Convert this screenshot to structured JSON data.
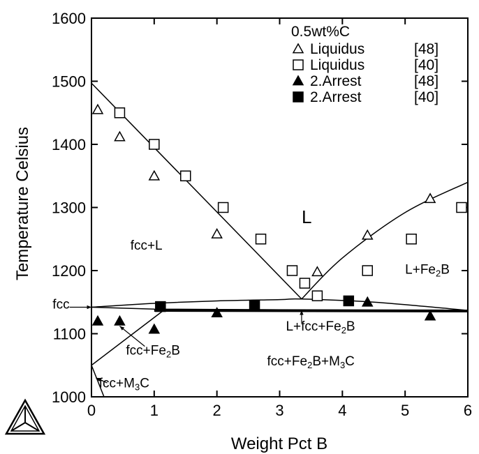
{
  "chart_data": {
    "type": "scatter",
    "title": "",
    "xlabel": "Weight Pct B",
    "ylabel": "Temperature Celsius",
    "xlim": [
      0,
      6
    ],
    "ylim": [
      1000,
      1600
    ],
    "x_ticks": [
      "0",
      "1",
      "2",
      "3",
      "4",
      "5",
      "6"
    ],
    "y_ticks": [
      "1000",
      "1100",
      "1200",
      "1300",
      "1400",
      "1500",
      "1600"
    ],
    "legend": {
      "title": "0.5wt%C",
      "position": "top-right",
      "entries": [
        {
          "label": "Liquidus",
          "ref": "[48]",
          "marker": "triangle-open"
        },
        {
          "label": "Liquidus",
          "ref": "[40]",
          "marker": "square-open"
        },
        {
          "label": "2.Arrest",
          "ref": "[48]",
          "marker": "triangle-filled"
        },
        {
          "label": "2.Arrest",
          "ref": "[40]",
          "marker": "square-filled"
        }
      ]
    },
    "series": [
      {
        "marker": "triangle-open",
        "points": [
          [
            0.1,
            1455
          ],
          [
            0.45,
            1412
          ],
          [
            1.0,
            1350
          ],
          [
            2.0,
            1258
          ],
          [
            3.6,
            1198
          ],
          [
            4.4,
            1256
          ],
          [
            5.4,
            1314
          ]
        ]
      },
      {
        "marker": "square-open",
        "points": [
          [
            0.45,
            1450
          ],
          [
            1.0,
            1400
          ],
          [
            1.5,
            1350
          ],
          [
            2.1,
            1300
          ],
          [
            2.7,
            1250
          ],
          [
            3.2,
            1200
          ],
          [
            3.4,
            1180
          ],
          [
            3.6,
            1160
          ],
          [
            4.4,
            1200
          ],
          [
            5.1,
            1250
          ],
          [
            5.9,
            1300
          ]
        ]
      },
      {
        "marker": "triangle-filled",
        "points": [
          [
            0.1,
            1120
          ],
          [
            0.45,
            1120
          ],
          [
            1.0,
            1107
          ],
          [
            2.0,
            1133
          ],
          [
            4.4,
            1150
          ],
          [
            5.4,
            1128
          ]
        ]
      },
      {
        "marker": "square-filled",
        "points": [
          [
            1.1,
            1143
          ],
          [
            2.6,
            1145
          ],
          [
            4.1,
            1152
          ]
        ]
      }
    ],
    "lines": [
      {
        "name": "liquidus-left",
        "points": [
          [
            0,
            1497
          ],
          [
            3.35,
            1155
          ]
        ]
      },
      {
        "name": "liquidus-right",
        "points": [
          [
            3.35,
            1155
          ],
          [
            4.0,
            1220
          ],
          [
            5.0,
            1292
          ],
          [
            6.0,
            1340
          ]
        ]
      },
      {
        "name": "fcc-solidus-arc",
        "points": [
          [
            0,
            1142
          ],
          [
            1.0,
            1148
          ],
          [
            2.0,
            1152
          ],
          [
            3.0,
            1154
          ],
          [
            3.35,
            1155
          ],
          [
            4.5,
            1150
          ],
          [
            6.0,
            1137
          ]
        ]
      },
      {
        "name": "eutectic-bottom",
        "points": [
          [
            0,
            1142
          ],
          [
            1.0,
            1139
          ],
          [
            6.0,
            1136
          ]
        ]
      },
      {
        "name": "ternary-line",
        "points": [
          [
            1.0,
            1137
          ],
          [
            6.0,
            1136
          ]
        ],
        "thick": true
      },
      {
        "name": "fcc-fe2b-boundary",
        "points": [
          [
            0,
            1050
          ],
          [
            1.15,
            1137
          ]
        ]
      },
      {
        "name": "fcc-boundary-vertical",
        "points": [
          [
            0,
            1142
          ],
          [
            0,
            1050
          ]
        ]
      },
      {
        "name": "fcc-m3c-boundary",
        "points": [
          [
            0,
            1050
          ],
          [
            0.2,
            1000
          ]
        ]
      }
    ],
    "annotations": [
      {
        "text": "L",
        "sub": "",
        "rest": "",
        "x": 3.35,
        "y": 1275,
        "size": "big"
      },
      {
        "text": "fcc+L",
        "sub": "",
        "rest": "",
        "x": 0.62,
        "y": 1233
      },
      {
        "text": "L+Fe",
        "sub": "2",
        "rest": "B",
        "x": 5.0,
        "y": 1195
      },
      {
        "text": "fcc+Fe",
        "sub": "2",
        "rest": "B",
        "x": 0.55,
        "y": 1067
      },
      {
        "text": "fcc+Fe",
        "sub": "2",
        "rest": "B+M",
        "sub2": "3",
        "rest2": "C",
        "x": 2.8,
        "y": 1050
      },
      {
        "text": "fcc+M",
        "sub": "3",
        "rest": "C",
        "x": 0.12,
        "y": 1015
      },
      {
        "text": "L+fcc+Fe",
        "sub": "2",
        "rest": "B",
        "x": 3.1,
        "y": 1105
      },
      {
        "text": "fcc",
        "sub": "",
        "rest": "",
        "x": -0.62,
        "y": 1140
      }
    ],
    "grid": false
  },
  "colors": {
    "line": "#000000",
    "background": "#ffffff"
  },
  "logo": {
    "name": "thermo-calc-triangle-logo"
  }
}
